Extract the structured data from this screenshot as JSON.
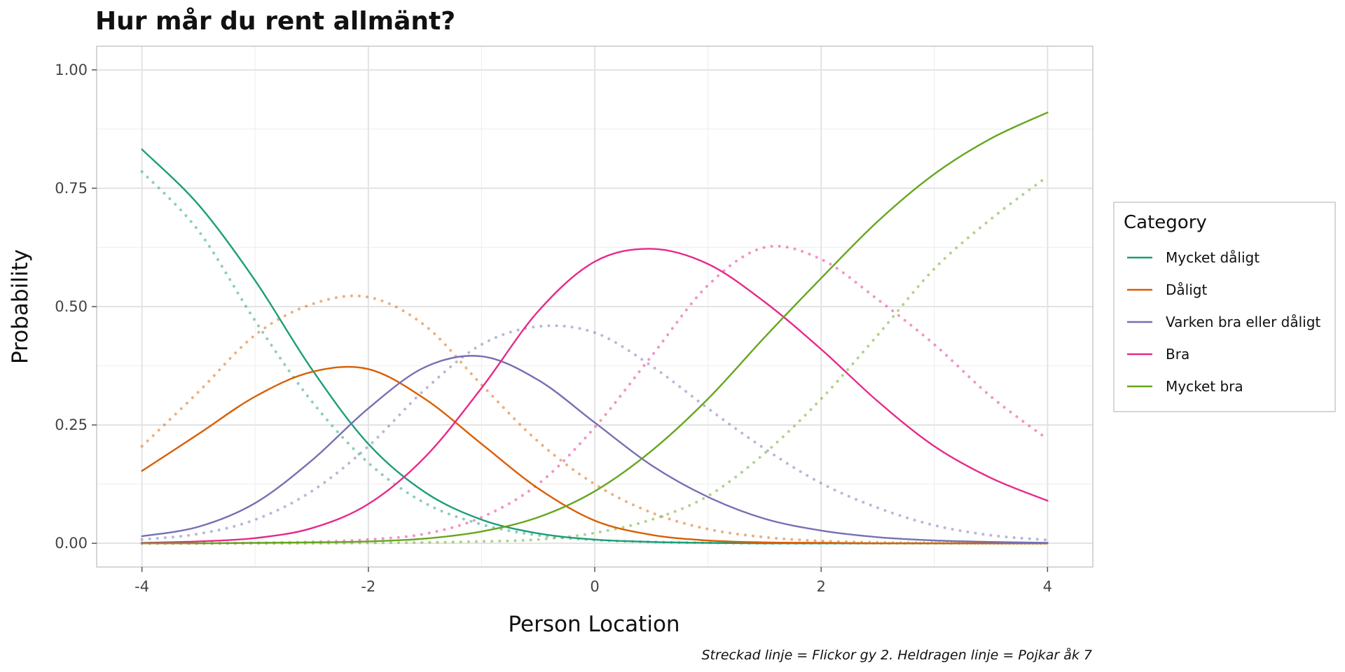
{
  "chart_data": {
    "type": "line",
    "title": "Hur mår du rent allmänt?",
    "xlabel": "Person Location",
    "ylabel": "Probability",
    "caption": "Streckad linje = Flickor gy 2. Heldragen linje = Pojkar åk 7",
    "xlim": [
      -4,
      4
    ],
    "ylim": [
      0,
      1
    ],
    "x_ticks": [
      -4,
      -2,
      0,
      2,
      4
    ],
    "x_tick_labels": [
      "-4",
      "-2",
      "0",
      "2",
      "4"
    ],
    "y_ticks": [
      0,
      0.25,
      0.5,
      0.75,
      1.0
    ],
    "y_tick_labels": [
      "0.00",
      "0.25",
      "0.50",
      "0.75",
      "1.00"
    ],
    "grid": true,
    "legend": {
      "title": "Category",
      "placement": "right",
      "items": [
        {
          "label": "Mycket dåligt",
          "color": "#1b9e77"
        },
        {
          "label": "Dåligt",
          "color": "#d95f02"
        },
        {
          "label": "Varken bra eller dåligt",
          "color": "#7570b3"
        },
        {
          "label": "Bra",
          "color": "#e7298a"
        },
        {
          "label": "Mycket bra",
          "color": "#66a61e"
        }
      ]
    },
    "x": [
      -4.0,
      -3.5,
      -3.0,
      -2.5,
      -2.0,
      -1.5,
      -1.0,
      -0.5,
      0.0,
      0.5,
      1.0,
      1.5,
      2.0,
      2.5,
      3.0,
      3.5,
      4.0
    ],
    "series": [
      {
        "group": "Pojkar åk 7",
        "style": "solid",
        "category": "Mycket dåligt",
        "color": "#1b9e77",
        "values": [
          0.832,
          0.715,
          0.555,
          0.368,
          0.21,
          0.108,
          0.05,
          0.021,
          0.008,
          0.003,
          0.001,
          0.0,
          0.0,
          0.0,
          0.0,
          0.0,
          0.0
        ]
      },
      {
        "group": "Pojkar åk 7",
        "style": "solid",
        "category": "Dåligt",
        "color": "#d95f02",
        "values": [
          0.153,
          0.231,
          0.31,
          0.362,
          0.368,
          0.305,
          0.21,
          0.116,
          0.048,
          0.018,
          0.006,
          0.002,
          0.001,
          0.0,
          0.0,
          0.0,
          0.0
        ]
      },
      {
        "group": "Pojkar åk 7",
        "style": "solid",
        "category": "Varken bra eller dåligt",
        "color": "#7570b3",
        "values": [
          0.015,
          0.035,
          0.085,
          0.175,
          0.285,
          0.372,
          0.395,
          0.345,
          0.255,
          0.165,
          0.098,
          0.052,
          0.027,
          0.013,
          0.006,
          0.003,
          0.001
        ]
      },
      {
        "group": "Pojkar åk 7",
        "style": "solid",
        "category": "Bra",
        "color": "#e7298a",
        "values": [
          0.001,
          0.004,
          0.011,
          0.032,
          0.083,
          0.182,
          0.328,
          0.49,
          0.595,
          0.622,
          0.59,
          0.51,
          0.41,
          0.3,
          0.205,
          0.138,
          0.09
        ]
      },
      {
        "group": "Pojkar åk 7",
        "style": "solid",
        "category": "Mycket bra",
        "color": "#66a61e",
        "values": [
          0.0,
          0.0,
          0.001,
          0.002,
          0.004,
          0.01,
          0.025,
          0.055,
          0.11,
          0.195,
          0.305,
          0.435,
          0.56,
          0.68,
          0.78,
          0.855,
          0.91
        ]
      },
      {
        "group": "Flickor gy 2",
        "style": "dashed",
        "category": "Mycket dåligt",
        "color": "#1b9e77",
        "values": [
          0.785,
          0.66,
          0.47,
          0.3,
          0.17,
          0.085,
          0.04,
          0.017,
          0.007,
          0.003,
          0.001,
          0.0,
          0.0,
          0.0,
          0.0,
          0.0,
          0.0
        ]
      },
      {
        "group": "Flickor gy 2",
        "style": "dashed",
        "category": "Dåligt",
        "color": "#d95f02",
        "values": [
          0.205,
          0.32,
          0.44,
          0.505,
          0.52,
          0.46,
          0.335,
          0.215,
          0.125,
          0.065,
          0.03,
          0.013,
          0.005,
          0.002,
          0.001,
          0.0,
          0.0
        ]
      },
      {
        "group": "Flickor gy 2",
        "style": "dashed",
        "category": "Varken bra eller dåligt",
        "color": "#7570b3",
        "values": [
          0.008,
          0.02,
          0.05,
          0.11,
          0.205,
          0.325,
          0.42,
          0.458,
          0.445,
          0.375,
          0.285,
          0.2,
          0.127,
          0.075,
          0.038,
          0.017,
          0.007
        ]
      },
      {
        "group": "Flickor gy 2",
        "style": "dashed",
        "category": "Bra",
        "color": "#e7298a",
        "values": [
          0.0,
          0.0,
          0.001,
          0.003,
          0.008,
          0.02,
          0.055,
          0.125,
          0.245,
          0.395,
          0.545,
          0.625,
          0.6,
          0.515,
          0.42,
          0.31,
          0.22
        ]
      },
      {
        "group": "Flickor gy 2",
        "style": "dashed",
        "category": "Mycket bra",
        "color": "#66a61e",
        "values": [
          0.0,
          0.0,
          0.0,
          0.0,
          0.001,
          0.002,
          0.004,
          0.008,
          0.022,
          0.05,
          0.1,
          0.19,
          0.305,
          0.44,
          0.58,
          0.685,
          0.775
        ]
      }
    ]
  }
}
